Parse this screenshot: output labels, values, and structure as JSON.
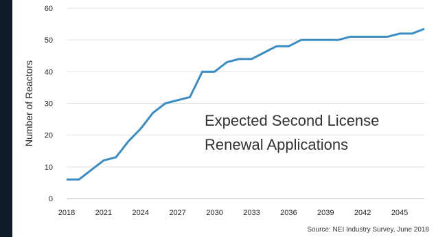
{
  "chart_data": {
    "type": "line",
    "title": "",
    "annotation_lines": [
      "Expected Second License",
      "Renewal Applications"
    ],
    "ylabel": "Number of Reactors",
    "xlabel": "",
    "source": "Source: NEI Industry Survey, June 2018",
    "xlim": [
      2018,
      2047
    ],
    "ylim": [
      0,
      60
    ],
    "x_ticks": [
      "2018",
      "2021",
      "2024",
      "2027",
      "2030",
      "2033",
      "2036",
      "2039",
      "2042",
      "2045"
    ],
    "y_ticks": [
      "0",
      "10",
      "20",
      "30",
      "40",
      "50",
      "60"
    ],
    "grid": "horizontal",
    "series": [
      {
        "color": "#3a8cc4",
        "x": [
          2018,
          2019,
          2020,
          2021,
          2022,
          2023,
          2024,
          2025,
          2026,
          2027,
          2028,
          2029,
          2030,
          2031,
          2032,
          2033,
          2034,
          2035,
          2036,
          2037,
          2038,
          2039,
          2040,
          2041,
          2042,
          2043,
          2044,
          2045,
          2046,
          2047
        ],
        "values": [
          6,
          6,
          9,
          12,
          13,
          18,
          22,
          27,
          30,
          31,
          32,
          40,
          40,
          43,
          44,
          44,
          46,
          48,
          48,
          50,
          50,
          50,
          50,
          51,
          51,
          51,
          51,
          52,
          52,
          53.5
        ]
      }
    ]
  }
}
